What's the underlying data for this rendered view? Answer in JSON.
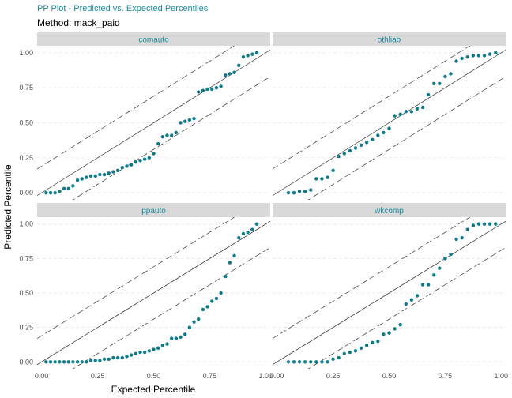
{
  "title": "PP Plot - Predicted vs. Expected Percentiles",
  "subtitle": "Method: mack_paid",
  "colors": {
    "point": "#0e7a8c",
    "strip_bg": "#d9d9d9",
    "strip_text": "#1a8a9a",
    "grid": "#ebebeb",
    "reference_line": "#000000",
    "band_line": "#333333"
  },
  "chart_data": {
    "type": "scatter",
    "xlabel": "Expected Percentile",
    "ylabel": "Predicted Percentile",
    "xlim": [
      -0.02,
      1.02
    ],
    "ylim": [
      -0.05,
      1.05
    ],
    "x_ticks": [
      "0.00",
      "0.25",
      "0.50",
      "0.75",
      "1.00"
    ],
    "y_ticks": [
      "0.00",
      "0.25",
      "0.50",
      "0.75",
      "1.00"
    ],
    "x_tick_values": [
      0,
      0.25,
      0.5,
      0.75,
      1
    ],
    "y_tick_values": [
      0,
      0.25,
      0.5,
      0.75,
      1
    ],
    "reference_line": {
      "slope": 1,
      "intercept": 0
    },
    "band_offset": 0.19,
    "grid": true,
    "panels": [
      {
        "name": "comauto",
        "x": [
          0.02,
          0.04,
          0.06,
          0.08,
          0.1,
          0.12,
          0.14,
          0.16,
          0.18,
          0.2,
          0.22,
          0.24,
          0.26,
          0.28,
          0.3,
          0.32,
          0.34,
          0.36,
          0.38,
          0.4,
          0.42,
          0.44,
          0.46,
          0.48,
          0.5,
          0.52,
          0.54,
          0.56,
          0.58,
          0.6,
          0.62,
          0.64,
          0.66,
          0.68,
          0.7,
          0.72,
          0.74,
          0.76,
          0.78,
          0.8,
          0.82,
          0.84,
          0.86,
          0.88,
          0.9,
          0.92,
          0.94,
          0.96
        ],
        "y": [
          0.0,
          0.0,
          0.0,
          0.01,
          0.03,
          0.03,
          0.05,
          0.09,
          0.1,
          0.11,
          0.12,
          0.12,
          0.13,
          0.13,
          0.14,
          0.15,
          0.16,
          0.18,
          0.19,
          0.2,
          0.22,
          0.23,
          0.24,
          0.25,
          0.28,
          0.35,
          0.4,
          0.41,
          0.41,
          0.43,
          0.5,
          0.51,
          0.52,
          0.53,
          0.72,
          0.73,
          0.74,
          0.74,
          0.75,
          0.76,
          0.84,
          0.85,
          0.86,
          0.91,
          0.97,
          0.98,
          0.99,
          1.0
        ]
      },
      {
        "name": "othliab",
        "x": [
          0.05,
          0.075,
          0.1,
          0.125,
          0.15,
          0.175,
          0.2,
          0.225,
          0.25,
          0.275,
          0.3,
          0.325,
          0.35,
          0.375,
          0.4,
          0.425,
          0.45,
          0.475,
          0.5,
          0.525,
          0.55,
          0.575,
          0.6,
          0.625,
          0.65,
          0.675,
          0.7,
          0.725,
          0.75,
          0.775,
          0.8,
          0.825,
          0.85,
          0.875,
          0.9,
          0.925,
          0.95,
          0.975
        ],
        "y": [
          0.0,
          0.0,
          0.01,
          0.01,
          0.02,
          0.1,
          0.1,
          0.11,
          0.16,
          0.26,
          0.28,
          0.3,
          0.32,
          0.34,
          0.36,
          0.38,
          0.41,
          0.43,
          0.46,
          0.55,
          0.56,
          0.58,
          0.58,
          0.6,
          0.61,
          0.7,
          0.78,
          0.78,
          0.83,
          0.85,
          0.94,
          0.96,
          0.97,
          0.98,
          0.98,
          0.98,
          0.99,
          1.0
        ]
      },
      {
        "name": "ppauto",
        "x": [
          0.02,
          0.04,
          0.06,
          0.08,
          0.1,
          0.12,
          0.14,
          0.16,
          0.18,
          0.2,
          0.22,
          0.24,
          0.26,
          0.28,
          0.3,
          0.32,
          0.34,
          0.36,
          0.38,
          0.4,
          0.42,
          0.44,
          0.46,
          0.48,
          0.5,
          0.52,
          0.54,
          0.56,
          0.58,
          0.6,
          0.62,
          0.64,
          0.66,
          0.68,
          0.7,
          0.72,
          0.74,
          0.76,
          0.78,
          0.8,
          0.82,
          0.84,
          0.86,
          0.88,
          0.9,
          0.92,
          0.94,
          0.96
        ],
        "y": [
          0.0,
          0.0,
          0.0,
          0.0,
          0.0,
          0.0,
          0.0,
          0.0,
          0.0,
          0.0,
          0.01,
          0.01,
          0.01,
          0.02,
          0.02,
          0.03,
          0.03,
          0.03,
          0.04,
          0.05,
          0.06,
          0.07,
          0.07,
          0.08,
          0.09,
          0.1,
          0.12,
          0.13,
          0.17,
          0.17,
          0.18,
          0.2,
          0.25,
          0.29,
          0.31,
          0.38,
          0.4,
          0.44,
          0.46,
          0.5,
          0.62,
          0.72,
          0.77,
          0.9,
          0.93,
          0.94,
          0.96,
          1.0
        ]
      },
      {
        "name": "wkcomp",
        "x": [
          0.05,
          0.075,
          0.1,
          0.125,
          0.15,
          0.175,
          0.2,
          0.225,
          0.25,
          0.275,
          0.3,
          0.325,
          0.35,
          0.375,
          0.4,
          0.425,
          0.45,
          0.475,
          0.5,
          0.525,
          0.55,
          0.575,
          0.6,
          0.625,
          0.65,
          0.675,
          0.7,
          0.725,
          0.75,
          0.775,
          0.8,
          0.825,
          0.85,
          0.875,
          0.9,
          0.925,
          0.95,
          0.975
        ],
        "y": [
          0.0,
          0.0,
          0.0,
          0.0,
          0.0,
          0.0,
          0.0,
          0.0,
          0.02,
          0.03,
          0.06,
          0.07,
          0.08,
          0.1,
          0.12,
          0.14,
          0.15,
          0.2,
          0.21,
          0.24,
          0.27,
          0.42,
          0.45,
          0.48,
          0.56,
          0.56,
          0.63,
          0.68,
          0.75,
          0.78,
          0.89,
          0.9,
          0.96,
          0.99,
          1.0,
          1.0,
          1.0,
          1.0
        ]
      }
    ]
  }
}
